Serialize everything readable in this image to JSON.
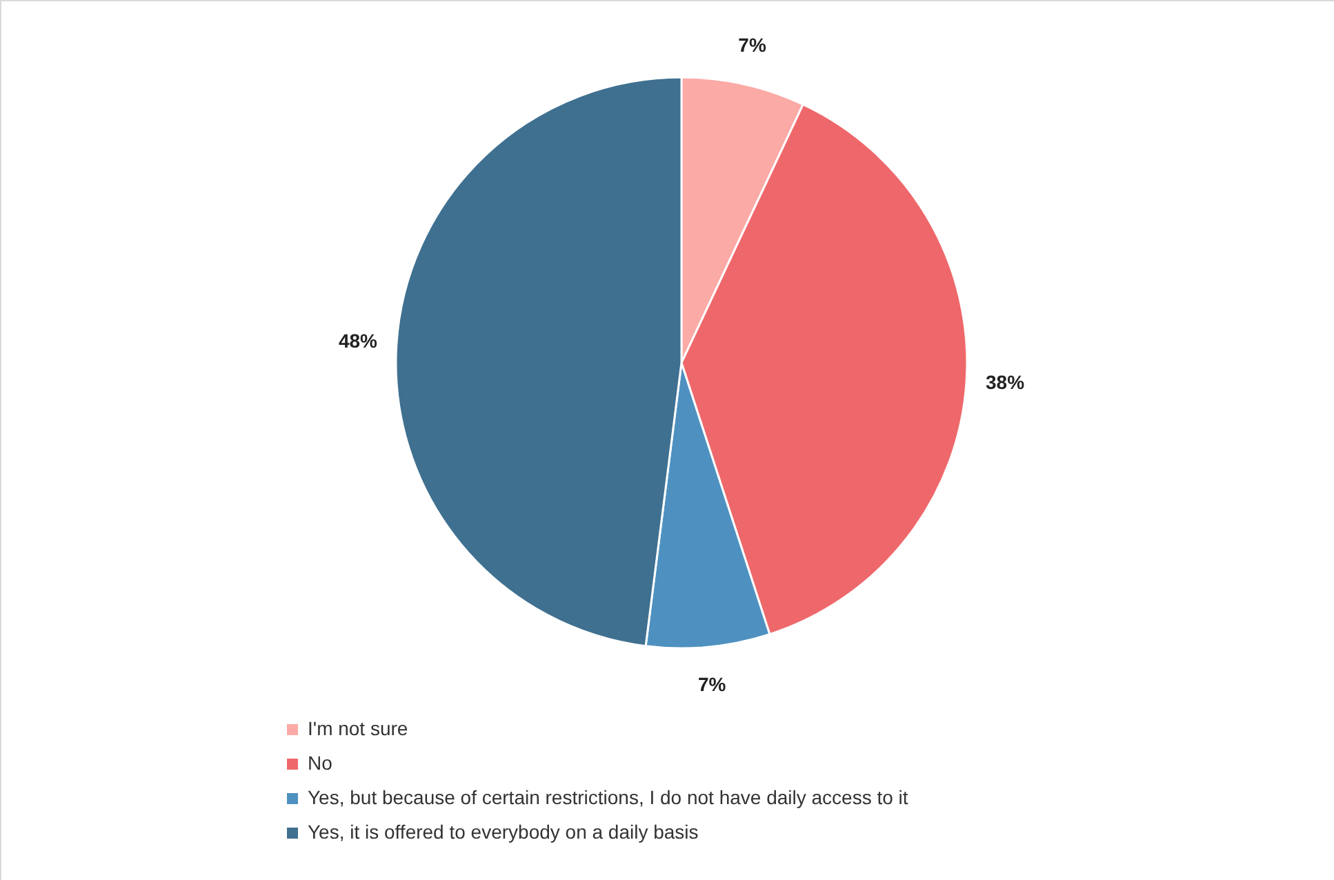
{
  "chart_data": {
    "type": "pie",
    "categories": [
      "I'm not sure",
      "No",
      "Yes, but because of certain restrictions, I do not have daily access to it",
      "Yes, it is offered to everybody on a daily basis"
    ],
    "values": [
      7,
      38,
      7,
      48
    ],
    "colors": [
      "#fbaaa6",
      "#ee686b",
      "#4e91c0",
      "#3f7090"
    ],
    "value_labels": [
      "7%",
      "38%",
      "7%",
      "48%"
    ],
    "legend": "bottom left"
  }
}
